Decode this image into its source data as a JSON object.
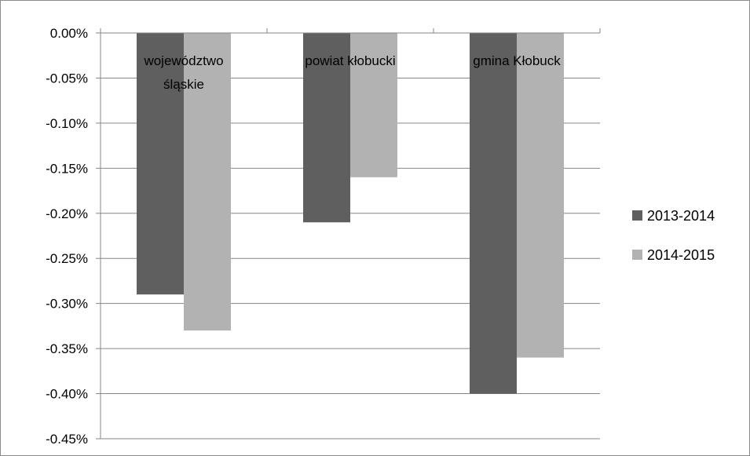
{
  "chart_data": {
    "type": "bar",
    "categories": [
      [
        "województwo",
        "śląskie"
      ],
      [
        "powiat kłobucki"
      ],
      [
        "gmina Kłobuck"
      ]
    ],
    "series": [
      {
        "name": "2013-2014",
        "color": "#5f5f5f",
        "values": [
          -0.29,
          -0.21,
          -0.4
        ]
      },
      {
        "name": "2014-2015",
        "color": "#b2b2b2",
        "values": [
          -0.33,
          -0.16,
          -0.36
        ]
      }
    ],
    "ylim": [
      -0.45,
      0.0
    ],
    "ytick_labels": [
      "0.00%",
      "-0.05%",
      "-0.10%",
      "-0.15%",
      "-0.20%",
      "-0.25%",
      "-0.30%",
      "-0.35%",
      "-0.40%",
      "-0.45%"
    ],
    "grid": true,
    "legend_position": "right",
    "title": "",
    "xlabel": "",
    "ylabel": ""
  }
}
